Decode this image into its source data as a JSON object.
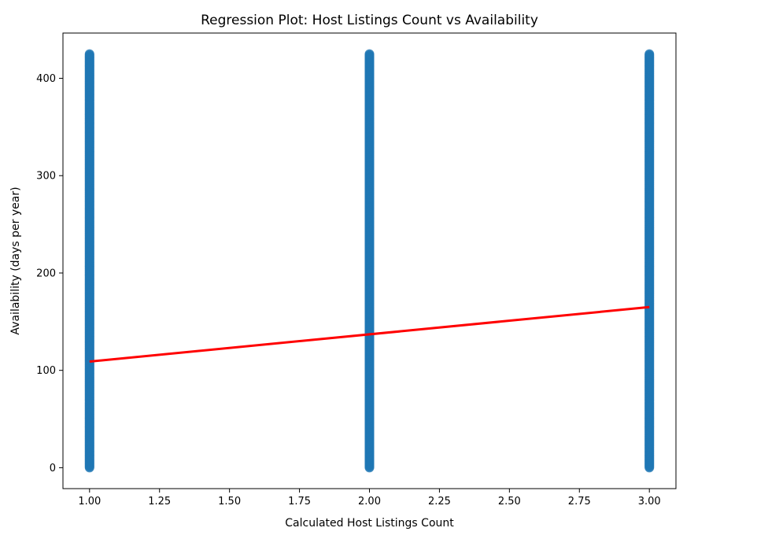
{
  "chart_data": {
    "type": "scatter",
    "title": "Regression Plot: Host Listings Count vs Availability",
    "xlabel": "Calculated Host Listings Count",
    "ylabel": "Availability (days per year)",
    "xlim": [
      0.905,
      3.095
    ],
    "ylim": [
      -21.5,
      446.5
    ],
    "x_ticks": [
      1.0,
      1.25,
      1.5,
      1.75,
      2.0,
      2.25,
      2.5,
      2.75,
      3.0
    ],
    "x_tick_labels": [
      "1.00",
      "1.25",
      "1.50",
      "1.75",
      "2.00",
      "2.25",
      "2.50",
      "2.75",
      "3.00"
    ],
    "y_ticks": [
      0,
      100,
      200,
      300,
      400
    ],
    "y_tick_labels": [
      "0",
      "100",
      "200",
      "300",
      "400"
    ],
    "grid": false,
    "series": [
      {
        "kind": "scatter",
        "color": "#1f77b4",
        "points": [
          {
            "x": 1.0,
            "y_range": [
              0,
              425
            ]
          },
          {
            "x": 2.0,
            "y_range": [
              0,
              425
            ]
          },
          {
            "x": 3.0,
            "y_range": [
              0,
              425
            ]
          }
        ]
      },
      {
        "kind": "regression_line",
        "color": "#ff0000",
        "x": [
          1.0,
          3.0
        ],
        "y": [
          109,
          165
        ]
      }
    ]
  }
}
